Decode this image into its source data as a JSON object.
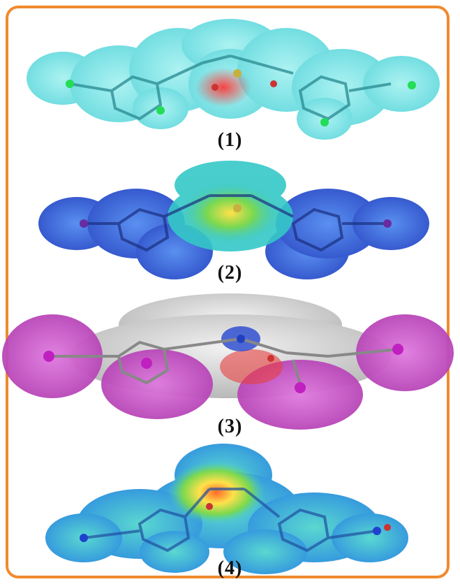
{
  "figure": {
    "panels": [
      {
        "label": "(1)",
        "surface": "cyan-surface",
        "colors": {
          "base": "#7fe6e6",
          "dark": "#3dbfc6",
          "hot": "#ff4040"
        }
      },
      {
        "label": "(2)",
        "surface": "blue-green-surface",
        "colors": {
          "base": "#3f6fe0",
          "mid": "#35c8c8",
          "hot": "#ffe14a"
        }
      },
      {
        "label": "(3)",
        "surface": "magenta-grey-surface",
        "colors": {
          "base": "#c8c8c8",
          "lobe": "#c64fc6",
          "hot": "#e84040"
        }
      },
      {
        "label": "(4)",
        "surface": "teal-surface",
        "colors": {
          "base": "#3aa7e0",
          "mid": "#45d0c0",
          "hot": "#ffe14a"
        }
      }
    ],
    "frame_color": "#f08a2e"
  }
}
